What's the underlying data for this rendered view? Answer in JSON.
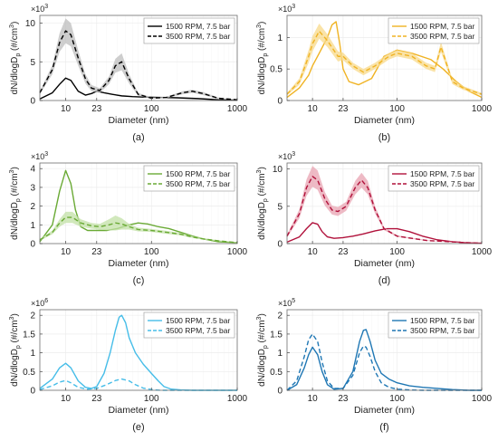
{
  "chart_data": [
    {
      "id": "a",
      "type": "line",
      "caption": "(a)",
      "color": "#000000",
      "band_color": "#bdbdbd",
      "xlabel": "Diameter (nm)",
      "ylabel": "dN/dlogD",
      "ylabel_sub": "p",
      "ylabel_units": " (#/cm",
      "ylabel_sup": "3",
      "ylabel_close": ")",
      "exponent": "3",
      "xscale": "log",
      "xlim": [
        5,
        1000
      ],
      "ylim": [
        0,
        11
      ],
      "yticks": [
        0,
        5,
        10
      ],
      "xticks": [
        10,
        23,
        100,
        1000
      ],
      "grid": true,
      "legend": "top-right",
      "series": [
        {
          "name": "1500 RPM, 7.5 bar",
          "style": "solid",
          "x": [
            5,
            7,
            8.5,
            10,
            11.5,
            14,
            17,
            20,
            23,
            28,
            35,
            45,
            60,
            80,
            120,
            200,
            350,
            600,
            1000
          ],
          "y": [
            0.2,
            1.0,
            2.1,
            2.9,
            2.6,
            1.2,
            0.7,
            0.9,
            1.2,
            1.0,
            0.8,
            0.6,
            0.5,
            0.45,
            0.4,
            0.35,
            0.25,
            0.1,
            0.05
          ]
        },
        {
          "name": "3500 RPM, 7.5 bar",
          "style": "dashed",
          "x": [
            5,
            7,
            8.5,
            10,
            11.5,
            14,
            17,
            20,
            25,
            32,
            38,
            45,
            55,
            70,
            100,
            150,
            230,
            300,
            400,
            600,
            1000
          ],
          "y": [
            1.0,
            4.0,
            7.5,
            9.0,
            8.5,
            5.5,
            2.8,
            1.6,
            1.3,
            2.6,
            4.5,
            5.0,
            2.8,
            0.8,
            0.3,
            0.4,
            1.0,
            1.2,
            0.9,
            0.3,
            0.1
          ],
          "band": [
            0.2,
            0.6,
            1.2,
            1.6,
            1.5,
            1.0,
            0.6,
            0.4,
            0.3,
            0.5,
            0.9,
            1.1,
            0.6,
            0.2,
            0.1,
            0.1,
            0.2,
            0.2,
            0.2,
            0.1,
            0.05
          ]
        }
      ]
    },
    {
      "id": "b",
      "type": "line",
      "caption": "(b)",
      "color": "#f0b323",
      "band_color": "#f8d98a",
      "xlabel": "Diameter (nm)",
      "ylabel": "dN/dlogD",
      "ylabel_sub": "p",
      "ylabel_units": " (#/cm",
      "ylabel_sup": "3",
      "ylabel_close": ")",
      "exponent": "3",
      "xscale": "log",
      "xlim": [
        5,
        1000
      ],
      "ylim": [
        0,
        1.35
      ],
      "yticks": [
        0,
        0.5,
        1
      ],
      "xticks": [
        10,
        23,
        100,
        1000
      ],
      "grid": true,
      "legend": "top-right",
      "series": [
        {
          "name": "1500 RPM, 7.5 bar",
          "style": "solid",
          "x": [
            5,
            7,
            9,
            10,
            12,
            15,
            17,
            19,
            21,
            23,
            27,
            35,
            50,
            70,
            100,
            150,
            250,
            350,
            500,
            700,
            1000
          ],
          "y": [
            0.05,
            0.2,
            0.4,
            0.55,
            0.75,
            1.0,
            1.2,
            1.25,
            0.9,
            0.5,
            0.3,
            0.25,
            0.35,
            0.7,
            0.8,
            0.75,
            0.65,
            0.5,
            0.3,
            0.15,
            0.05
          ]
        },
        {
          "name": "3500 RPM, 7.5 bar",
          "style": "dashed",
          "x": [
            5,
            7,
            9,
            10,
            12,
            15,
            20,
            23,
            30,
            40,
            55,
            80,
            100,
            150,
            220,
            280,
            330,
            380,
            450,
            600,
            1000
          ],
          "y": [
            0.1,
            0.3,
            0.7,
            0.9,
            1.1,
            0.95,
            0.7,
            0.7,
            0.55,
            0.45,
            0.55,
            0.7,
            0.75,
            0.7,
            0.55,
            0.5,
            0.85,
            0.6,
            0.3,
            0.2,
            0.1
          ],
          "band": [
            0.02,
            0.05,
            0.1,
            0.12,
            0.12,
            0.1,
            0.08,
            0.06,
            0.05,
            0.05,
            0.05,
            0.05,
            0.05,
            0.05,
            0.05,
            0.05,
            0.08,
            0.06,
            0.04,
            0.03,
            0.02
          ]
        }
      ]
    },
    {
      "id": "c",
      "type": "line",
      "caption": "(c)",
      "color": "#6aaa35",
      "band_color": "#c2e0a6",
      "xlabel": "Diameter (nm)",
      "ylabel": "dN/dlogD",
      "ylabel_sub": "p",
      "ylabel_units": " (#/cm",
      "ylabel_sup": "3",
      "ylabel_close": ")",
      "exponent": "3",
      "xscale": "log",
      "xlim": [
        5,
        1000
      ],
      "ylim": [
        0,
        4.3
      ],
      "yticks": [
        0,
        1,
        2,
        3,
        4
      ],
      "xticks": [
        10,
        23,
        100,
        1000
      ],
      "grid": true,
      "legend": "top-right",
      "series": [
        {
          "name": "1500 RPM, 7.5 bar",
          "style": "solid",
          "x": [
            5,
            7,
            8.5,
            10,
            11.5,
            13,
            15,
            18,
            23,
            30,
            40,
            55,
            70,
            90,
            120,
            160,
            220,
            300,
            400,
            600,
            1000
          ],
          "y": [
            0.1,
            1.0,
            2.8,
            3.9,
            3.2,
            1.8,
            0.9,
            0.7,
            0.7,
            0.7,
            0.8,
            1.0,
            1.1,
            1.05,
            0.9,
            0.8,
            0.6,
            0.4,
            0.25,
            0.1,
            0.05
          ]
        },
        {
          "name": "3500 RPM, 7.5 bar",
          "style": "dashed",
          "x": [
            5,
            7,
            8.5,
            10,
            12,
            15,
            20,
            25,
            32,
            38,
            45,
            55,
            70,
            100,
            150,
            220,
            300,
            400,
            600,
            1000
          ],
          "y": [
            0.2,
            0.6,
            1.1,
            1.4,
            1.4,
            1.1,
            0.95,
            0.9,
            1.0,
            1.1,
            1.05,
            0.9,
            0.75,
            0.7,
            0.6,
            0.5,
            0.35,
            0.25,
            0.15,
            0.05
          ],
          "band": [
            0.05,
            0.1,
            0.2,
            0.3,
            0.3,
            0.2,
            0.15,
            0.15,
            0.3,
            0.4,
            0.3,
            0.15,
            0.1,
            0.08,
            0.08,
            0.06,
            0.05,
            0.04,
            0.03,
            0.02
          ]
        }
      ]
    },
    {
      "id": "d",
      "type": "line",
      "caption": "(d)",
      "color": "#b0103a",
      "band_color": "#e8a3b2",
      "xlabel": "Diameter (nm)",
      "ylabel": "dN/dlogD",
      "ylabel_sub": "p",
      "ylabel_units": " (#/cm",
      "ylabel_sup": "3",
      "ylabel_close": ")",
      "exponent": "3",
      "xscale": "log",
      "xlim": [
        5,
        1000
      ],
      "ylim": [
        0,
        10.8
      ],
      "yticks": [
        0,
        5,
        10
      ],
      "xticks": [
        10,
        23,
        100,
        1000
      ],
      "grid": true,
      "legend": "top-right",
      "series": [
        {
          "name": "1500 RPM, 7.5 bar",
          "style": "solid",
          "x": [
            5,
            7,
            8.5,
            10,
            11.5,
            13,
            15,
            18,
            23,
            30,
            40,
            55,
            75,
            100,
            140,
            200,
            300,
            450,
            700,
            1000
          ],
          "y": [
            0.2,
            0.9,
            2.0,
            2.8,
            2.6,
            1.6,
            0.9,
            0.7,
            0.8,
            1.0,
            1.3,
            1.7,
            2.0,
            2.0,
            1.6,
            1.0,
            0.5,
            0.25,
            0.1,
            0.05
          ]
        },
        {
          "name": "3500 RPM, 7.5 bar",
          "style": "dashed",
          "x": [
            5,
            7,
            8.5,
            10,
            11.5,
            14,
            17,
            20,
            25,
            32,
            38,
            45,
            55,
            70,
            100,
            150,
            230,
            350,
            600,
            1000
          ],
          "y": [
            1.0,
            4.0,
            7.5,
            9.0,
            8.5,
            6.0,
            4.5,
            4.3,
            5.0,
            7.5,
            8.5,
            7.5,
            4.5,
            2.0,
            1.0,
            0.7,
            0.4,
            0.3,
            0.15,
            0.05
          ],
          "band": [
            0.2,
            0.6,
            1.1,
            1.4,
            1.3,
            0.9,
            0.6,
            0.6,
            0.6,
            0.9,
            1.0,
            0.9,
            0.5,
            0.2,
            0.1,
            0.08,
            0.05,
            0.04,
            0.02,
            0.01
          ]
        }
      ]
    },
    {
      "id": "e",
      "type": "line",
      "caption": "(e)",
      "color": "#46bde8",
      "band_color": "#b6e3f5",
      "xlabel": "Diameter (nm)",
      "ylabel": "dN/dlogD",
      "ylabel_sub": "p",
      "ylabel_units": " (#/cm",
      "ylabel_sup": "3",
      "ylabel_close": ")",
      "exponent": "6",
      "xscale": "log",
      "xlim": [
        5,
        1000
      ],
      "ylim": [
        0,
        2.15
      ],
      "yticks": [
        0,
        0.5,
        1,
        1.5,
        2
      ],
      "xticks": [
        10,
        23,
        100,
        1000
      ],
      "grid": true,
      "legend": "top-right",
      "series": [
        {
          "name": "1500 RPM, 7.5 bar",
          "style": "solid",
          "x": [
            5,
            7,
            8.5,
            10,
            11.5,
            14,
            17,
            20,
            23,
            28,
            33,
            38,
            42,
            45,
            50,
            55,
            65,
            80,
            100,
            120,
            140,
            170,
            220,
            300,
            1000
          ],
          "y": [
            0.05,
            0.3,
            0.6,
            0.72,
            0.6,
            0.25,
            0.08,
            0.05,
            0.1,
            0.45,
            1.0,
            1.6,
            1.95,
            2.0,
            1.8,
            1.4,
            1.0,
            0.7,
            0.45,
            0.25,
            0.1,
            0.03,
            0.01,
            0.0,
            0.0
          ]
        },
        {
          "name": "3500 RPM, 7.5 bar",
          "style": "dashed",
          "x": [
            5,
            7,
            8.5,
            10,
            11.5,
            14,
            18,
            23,
            30,
            38,
            45,
            55,
            65,
            80,
            100,
            130,
            200,
            1000
          ],
          "y": [
            0.02,
            0.12,
            0.22,
            0.26,
            0.2,
            0.08,
            0.03,
            0.05,
            0.15,
            0.26,
            0.3,
            0.25,
            0.15,
            0.06,
            0.02,
            0.0,
            0.0,
            0.0
          ]
        }
      ]
    },
    {
      "id": "f",
      "type": "line",
      "caption": "(f)",
      "color": "#1f77b4",
      "band_color": "#a9c9e4",
      "xlabel": "Diameter (nm)",
      "ylabel": "dN/dlogD",
      "ylabel_sub": "p",
      "ylabel_units": " (#/cm",
      "ylabel_sup": "3",
      "ylabel_close": ")",
      "exponent": "5",
      "xscale": "log",
      "xlim": [
        5,
        1000
      ],
      "ylim": [
        0,
        2.15
      ],
      "yticks": [
        0,
        0.5,
        1,
        1.5,
        2
      ],
      "xticks": [
        10,
        23,
        100,
        1000
      ],
      "grid": true,
      "legend": "top-right",
      "series": [
        {
          "name": "1500 RPM, 7.5 bar",
          "style": "solid",
          "x": [
            5,
            6.5,
            8,
            9,
            10,
            11.5,
            13,
            15,
            18,
            23,
            30,
            36,
            40,
            43,
            48,
            55,
            65,
            80,
            100,
            140,
            200,
            300,
            450,
            700,
            1000
          ],
          "y": [
            0.0,
            0.15,
            0.6,
            0.95,
            1.15,
            0.95,
            0.5,
            0.15,
            0.03,
            0.05,
            0.5,
            1.3,
            1.6,
            1.62,
            1.3,
            0.8,
            0.45,
            0.3,
            0.2,
            0.12,
            0.08,
            0.05,
            0.02,
            0.0,
            0.0
          ]
        },
        {
          "name": "3500 RPM, 7.5 bar",
          "style": "dashed",
          "x": [
            5,
            6.5,
            8,
            9,
            10,
            11.5,
            13,
            15,
            18,
            23,
            30,
            36,
            40,
            43,
            48,
            55,
            65,
            80,
            100,
            140,
            200,
            300,
            1000
          ],
          "y": [
            0.0,
            0.25,
            0.9,
            1.35,
            1.5,
            1.3,
            0.75,
            0.25,
            0.05,
            0.05,
            0.4,
            1.0,
            1.18,
            1.15,
            0.9,
            0.5,
            0.2,
            0.08,
            0.03,
            0.01,
            0.0,
            0.0,
            0.0
          ]
        }
      ]
    }
  ]
}
